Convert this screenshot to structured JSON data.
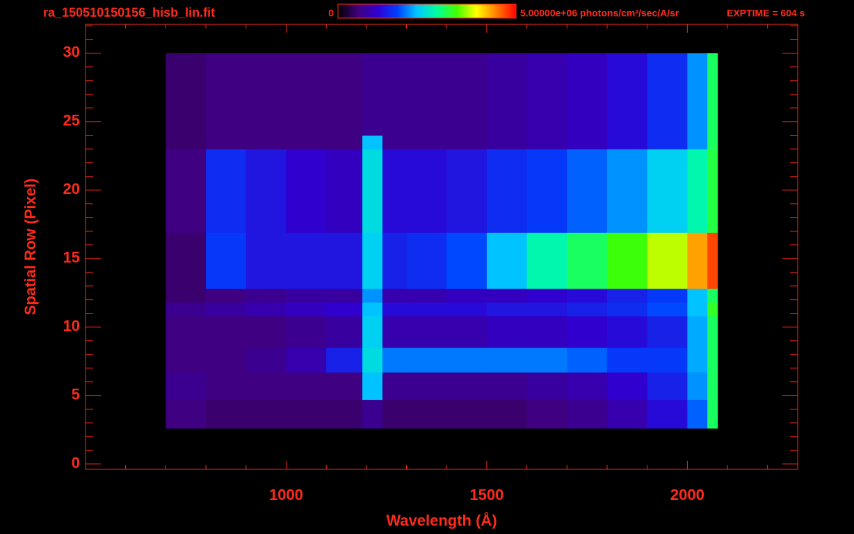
{
  "chart_data": {
    "type": "heatmap",
    "title": "ra_150510150156_hisb_lin.fit",
    "annotation": "EXPTIME = 604 s",
    "x_label": "Wavelength (Å)",
    "y_label": "Spatial Row (Pixel)",
    "color": "#ff2a1a",
    "xlim": [
      500,
      2275
    ],
    "ylim": [
      -0.4,
      32.1
    ],
    "xticks": [
      1000,
      1500,
      2000
    ],
    "yticks": [
      0,
      5,
      10,
      15,
      20,
      25,
      30
    ],
    "xminorticks": [
      600,
      700,
      800,
      900,
      1100,
      1200,
      1300,
      1400,
      1600,
      1700,
      1800,
      1900,
      2100,
      2200
    ],
    "yminorticks": [
      1,
      2,
      3,
      4,
      6,
      7,
      8,
      9,
      11,
      12,
      13,
      14,
      16,
      17,
      18,
      19,
      21,
      22,
      23,
      24,
      26,
      27,
      28,
      29,
      31,
      32
    ],
    "x_edges": [
      700,
      800,
      900,
      1000,
      1100,
      1190,
      1240,
      1300,
      1400,
      1500,
      1600,
      1700,
      1800,
      1900,
      2000,
      2050,
      2075
    ],
    "y_edges": [
      2.6,
      4.7,
      6.7,
      8.5,
      10.8,
      11.8,
      12.8,
      16.9,
      23,
      24,
      30
    ],
    "values": [
      [
        600000.0,
        500000.0,
        500000.0,
        500000.0,
        500000.0,
        700000.0,
        500000.0,
        500000.0,
        500000.0,
        500000.0,
        600000.0,
        700000.0,
        900000.0,
        1200000.0,
        1800000.0,
        3000000.0
      ],
      [
        700000.0,
        600000.0,
        600000.0,
        600000.0,
        600000.0,
        2200000.0,
        700000.0,
        700000.0,
        700000.0,
        700000.0,
        800000.0,
        900000.0,
        1100000.0,
        1400000.0,
        2000000.0,
        3000000.0
      ],
      [
        600000.0,
        600000.0,
        700000.0,
        900000.0,
        1400000.0,
        2400000.0,
        1900000.0,
        1900000.0,
        1900000.0,
        1900000.0,
        1900000.0,
        1800000.0,
        1600000.0,
        1600000.0,
        2100000.0,
        3000000.0
      ],
      [
        600000.0,
        600000.0,
        600000.0,
        700000.0,
        800000.0,
        2300000.0,
        900000.0,
        900000.0,
        900000.0,
        1000000.0,
        1000000.0,
        1100000.0,
        1200000.0,
        1400000.0,
        2100000.0,
        3000000.0
      ],
      [
        700000.0,
        800000.0,
        900000.0,
        1000000.0,
        1100000.0,
        2200000.0,
        1200000.0,
        1200000.0,
        1200000.0,
        1300000.0,
        1300000.0,
        1400000.0,
        1500000.0,
        1700000.0,
        2200000.0,
        3200000.0
      ],
      [
        500000.0,
        600000.0,
        700000.0,
        800000.0,
        800000.0,
        2000000.0,
        900000.0,
        900000.0,
        1000000.0,
        1000000.0,
        1100000.0,
        1200000.0,
        1400000.0,
        1600000.0,
        2200000.0,
        3000000.0
      ],
      [
        500000.0,
        1600000.0,
        1300000.0,
        1300000.0,
        1300000.0,
        2300000.0,
        1400000.0,
        1500000.0,
        1700000.0,
        2200000.0,
        2700000.0,
        3000000.0,
        3300000.0,
        3700000.0,
        4300000.0,
        4700000.0
      ],
      [
        600000.0,
        1500000.0,
        1300000.0,
        1100000.0,
        1000000.0,
        2400000.0,
        1200000.0,
        1200000.0,
        1300000.0,
        1500000.0,
        1600000.0,
        1800000.0,
        2000000.0,
        2300000.0,
        2700000.0,
        3100000.0
      ],
      [
        500000.0,
        600000.0,
        600000.0,
        600000.0,
        600000.0,
        2200000.0,
        700000.0,
        700000.0,
        700000.0,
        800000.0,
        900000.0,
        1000000.0,
        1200000.0,
        1500000.0,
        2000000.0,
        3000000.0
      ],
      [
        500000.0,
        600000.0,
        600000.0,
        600000.0,
        600000.0,
        700000.0,
        700000.0,
        700000.0,
        700000.0,
        800000.0,
        900000.0,
        1000000.0,
        1200000.0,
        1500000.0,
        2000000.0,
        3000000.0
      ]
    ],
    "zlim": [
      0,
      5000000
    ],
    "zticks": [
      0,
      {
        "value": 5000000,
        "label": "5.00000e+06 photons/cm²/sec/A/sr"
      }
    ],
    "colormap": [
      "#000000",
      "#40007a",
      "#3000d0",
      "#0040ff",
      "#00c8ff",
      "#00ffa0",
      "#40ff00",
      "#ffff00",
      "#ff8000",
      "#ff0000"
    ]
  }
}
